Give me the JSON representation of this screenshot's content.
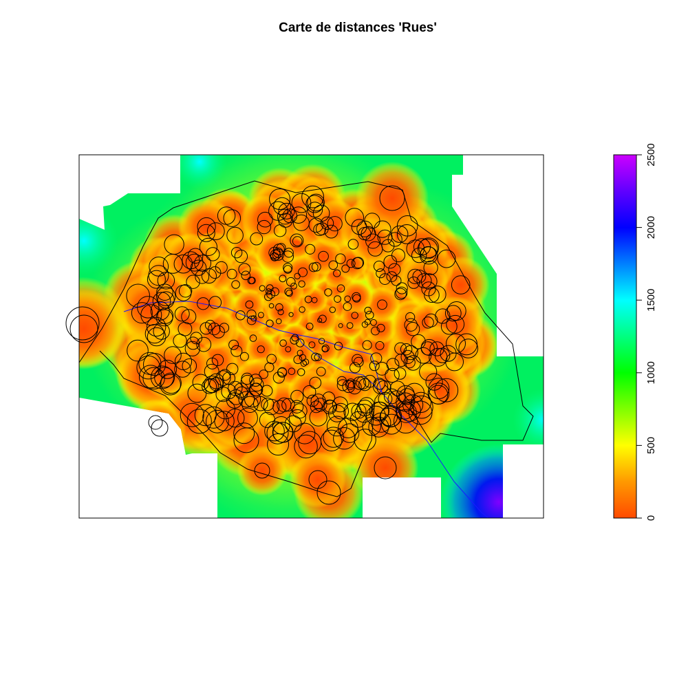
{
  "title": "Carte de distances 'Rues'",
  "legend": {
    "min": 0,
    "max": 2500,
    "ticks": [
      "0",
      "500",
      "1000",
      "1500",
      "2000",
      "2500"
    ],
    "tick_values": [
      0,
      500,
      1000,
      1500,
      2000,
      2500
    ],
    "palette": [
      "#ff4a00",
      "#ff8c00",
      "#ffd000",
      "#f0ff00",
      "#80ff00",
      "#00ff00",
      "#00ff80",
      "#00ffff",
      "#0080ff",
      "#0000ff",
      "#8000ff",
      "#cc00ff"
    ],
    "placement": "right"
  },
  "colors": {
    "near": "#ff5a00",
    "mid": "#ffff00",
    "far": "#00ff00",
    "river": "#1a1aff",
    "boundary": "#000000"
  }
}
